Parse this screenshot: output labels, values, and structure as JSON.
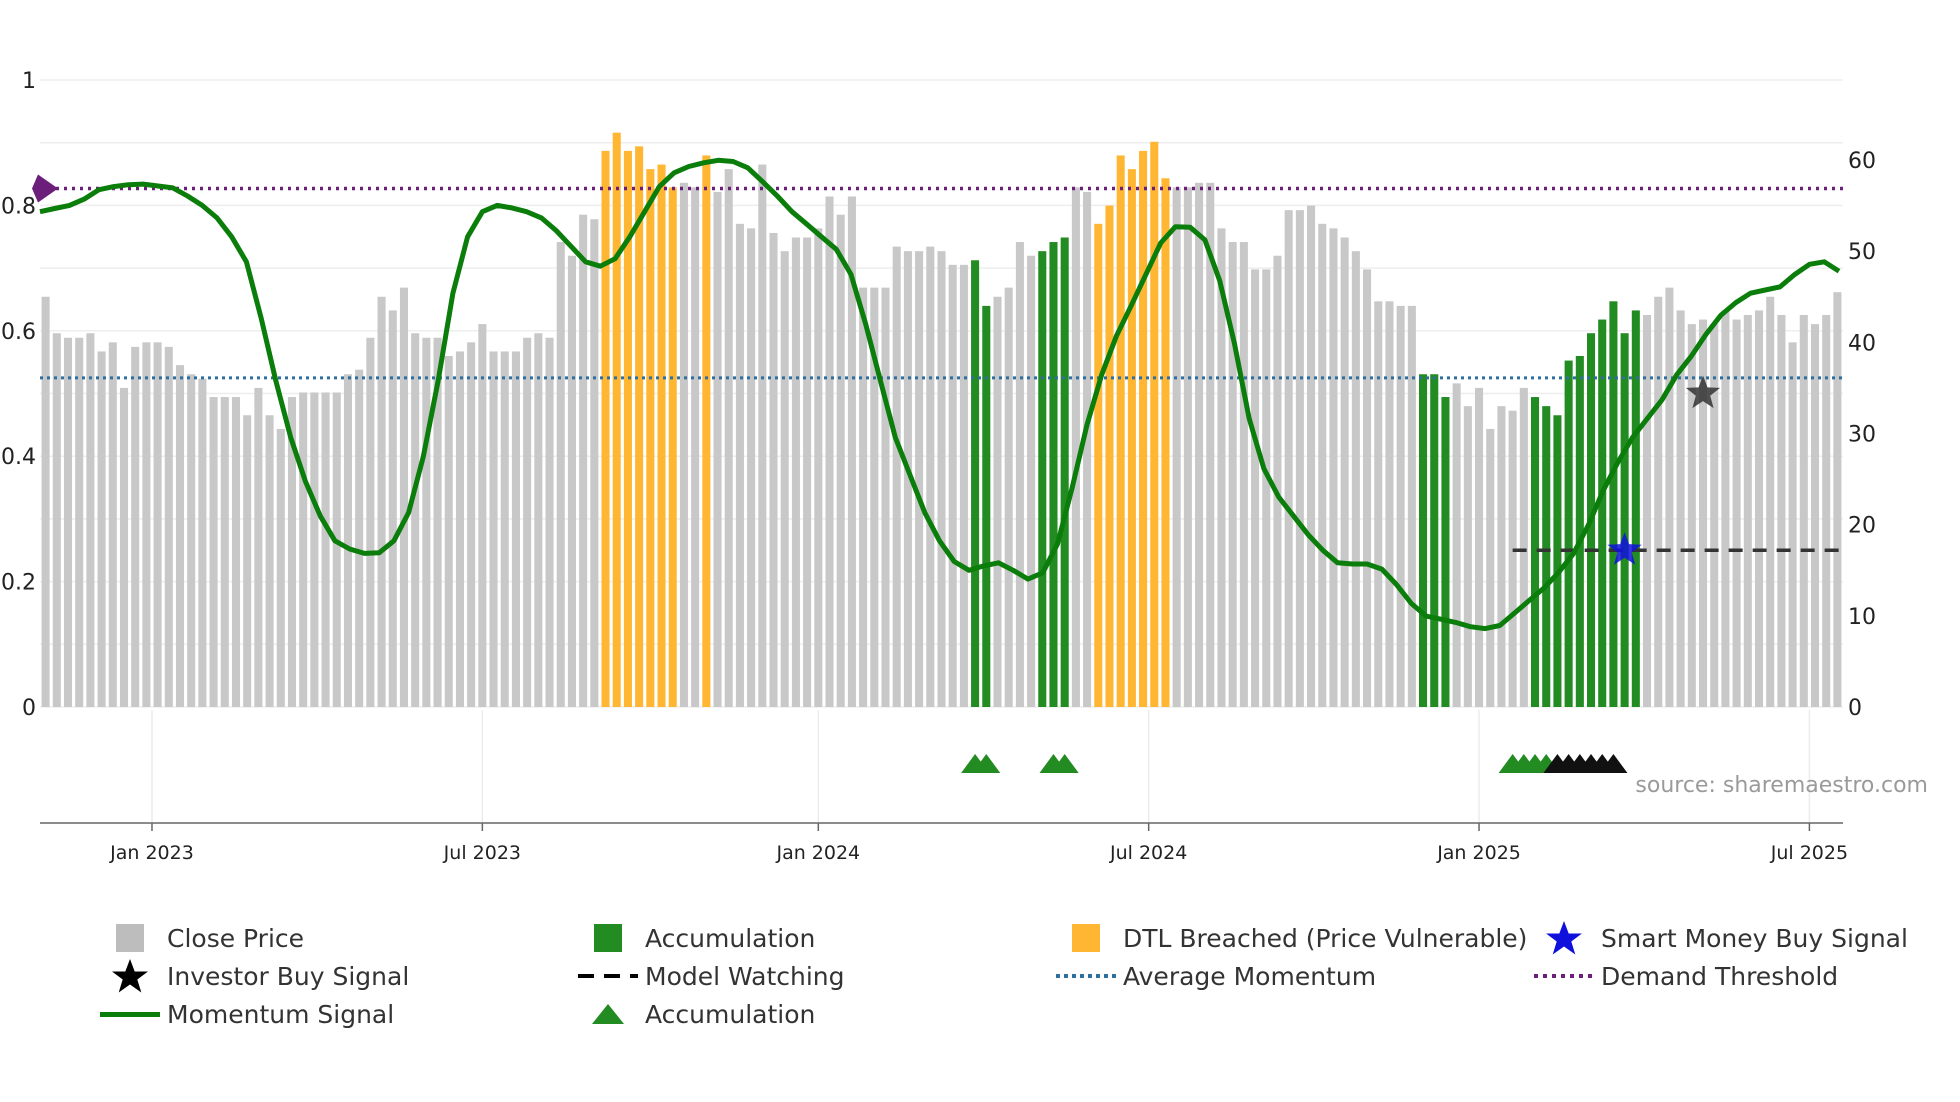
{
  "chart_data": {
    "type": "bar",
    "title": "",
    "source_note": "source: sharemaestro.com",
    "x_axis": {
      "ticks": [
        "Jan 2023",
        "Jul 2023",
        "Jan 2024",
        "Jul 2024",
        "Jan 2025",
        "Jul 2025"
      ]
    },
    "y_left": {
      "ticks": [
        "0",
        "0.2",
        "0.4",
        "0.6",
        "0.8",
        "1"
      ],
      "ylim": [
        0,
        1
      ]
    },
    "y_right": {
      "ticks": [
        "0",
        "10",
        "20",
        "30",
        "40",
        "50",
        "60"
      ],
      "ylim": [
        0,
        69
      ]
    },
    "close_price": [
      45,
      41,
      40.5,
      40.5,
      41,
      39,
      40,
      35,
      39.5,
      40,
      40,
      39.5,
      37.5,
      36.5,
      36,
      34,
      34,
      34,
      32,
      35,
      32,
      30.5,
      34,
      34.5,
      34.5,
      34.5,
      34.5,
      36.5,
      37,
      40.5,
      45,
      43.5,
      46,
      41,
      40.5,
      40.5,
      38.5,
      39,
      40,
      42,
      39,
      39,
      39,
      40.5,
      41,
      40.5,
      51,
      49.5,
      54,
      53.5,
      61,
      63,
      61,
      61.5,
      59,
      59.5,
      57,
      57.5,
      57,
      60.5,
      56.5,
      59,
      53,
      52.5,
      59.5,
      52,
      50,
      51.5,
      51.5,
      52.5,
      56,
      54,
      56,
      46,
      46,
      46,
      50.5,
      50,
      50,
      50.5,
      50,
      48.5,
      48.5,
      49,
      44,
      45,
      46,
      51,
      49.5,
      50,
      51,
      51.5,
      57,
      56.5,
      53,
      55,
      60.5,
      59,
      61,
      62,
      58,
      57,
      57,
      57.5,
      57.5,
      52.5,
      51,
      51,
      48,
      48,
      49.5,
      54.5,
      54.5,
      55,
      53,
      52.5,
      51.5,
      50,
      48,
      44.5,
      44.5,
      44,
      44,
      36.5,
      36.5,
      34,
      35.5,
      33,
      35,
      30.5,
      33,
      32.5,
      35,
      34,
      33,
      32,
      38,
      38.5,
      41,
      42.5,
      44.5,
      41,
      43.5,
      43,
      45,
      46,
      43.5,
      42,
      42.5,
      42,
      43.5,
      42.5,
      43,
      43.5,
      45,
      43,
      40,
      43,
      42,
      43,
      45.5
    ],
    "accumulation_bars": [
      83,
      84,
      89,
      90,
      90,
      91,
      123,
      124,
      125,
      133,
      134,
      135,
      136,
      137,
      138,
      139,
      140,
      141,
      142
    ],
    "dtl_breached_bars": [
      50,
      51,
      52,
      53,
      54,
      55,
      56,
      59,
      90,
      94,
      95,
      96,
      97,
      98,
      99,
      100
    ],
    "momentum_signal": [
      0.79,
      0.795,
      0.8,
      0.81,
      0.825,
      0.83,
      0.833,
      0.834,
      0.831,
      0.828,
      0.815,
      0.8,
      0.78,
      0.75,
      0.71,
      0.62,
      0.52,
      0.43,
      0.36,
      0.305,
      0.265,
      0.252,
      0.245,
      0.246,
      0.265,
      0.31,
      0.4,
      0.52,
      0.66,
      0.75,
      0.79,
      0.8,
      0.796,
      0.79,
      0.78,
      0.76,
      0.735,
      0.71,
      0.703,
      0.715,
      0.75,
      0.79,
      0.83,
      0.852,
      0.862,
      0.868,
      0.872,
      0.87,
      0.86,
      0.838,
      0.815,
      0.79,
      0.77,
      0.75,
      0.73,
      0.69,
      0.61,
      0.52,
      0.43,
      0.37,
      0.31,
      0.265,
      0.232,
      0.218,
      0.225,
      0.23,
      0.218,
      0.204,
      0.214,
      0.26,
      0.35,
      0.45,
      0.53,
      0.592,
      0.64,
      0.69,
      0.74,
      0.766,
      0.765,
      0.745,
      0.68,
      0.58,
      0.46,
      0.38,
      0.335,
      0.305,
      0.275,
      0.25,
      0.23,
      0.228,
      0.228,
      0.22,
      0.195,
      0.165,
      0.145,
      0.14,
      0.135,
      0.128,
      0.125,
      0.13,
      0.15,
      0.17,
      0.19,
      0.215,
      0.245,
      0.29,
      0.345,
      0.39,
      0.43,
      0.46,
      0.49,
      0.53,
      0.56,
      0.595,
      0.625,
      0.645,
      0.66,
      0.665,
      0.67,
      0.69,
      0.706,
      0.71,
      0.695
    ],
    "average_momentum": 0.525,
    "demand_threshold": 0.827,
    "model_watching_level": 0.25,
    "smart_money_buy_signal": {
      "bar": 141,
      "value": 0.25
    },
    "investor_buy_signal": {
      "bar": 148,
      "value": 0.5
    },
    "accumulation_markers": [
      83,
      84,
      90,
      91,
      131,
      132,
      133,
      134
    ],
    "investor_markers": [
      135,
      136,
      137,
      138,
      139,
      140
    ],
    "colors": {
      "close_price": "#c8c8c8",
      "accumulation": "#228B22",
      "dtl": "#FFB733",
      "momentum": "#0a7d0a",
      "average": "#2f6f9f",
      "demand": "#6b1f7a",
      "smart_money": "#1010dd"
    }
  },
  "legend": [
    {
      "label": "Close Price",
      "symbol": "gray-square"
    },
    {
      "label": "Investor Buy Signal",
      "symbol": "black-star"
    },
    {
      "label": "Momentum Signal",
      "symbol": "green-line"
    },
    {
      "label": "Accumulation",
      "symbol": "green-square"
    },
    {
      "label": "Model Watching",
      "symbol": "black-dash"
    },
    {
      "label": "Accumulation",
      "symbol": "green-triangle"
    },
    {
      "label": "DTL Breached (Price Vulnerable)",
      "symbol": "orange-square"
    },
    {
      "label": "Average Momentum",
      "symbol": "blue-dotted"
    },
    {
      "label": "Smart Money Buy Signal",
      "symbol": "blue-star"
    },
    {
      "label": "Demand Threshold",
      "symbol": "purple-dotted"
    }
  ]
}
